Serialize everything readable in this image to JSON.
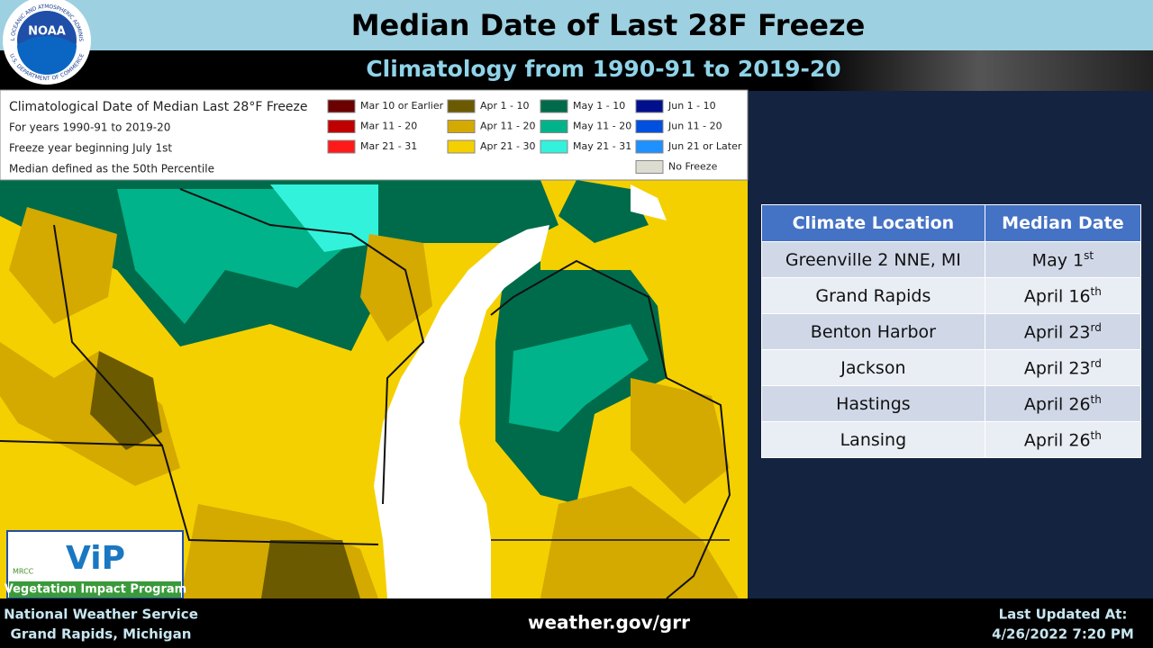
{
  "header": {
    "title": "Median Date of Last 28F Freeze",
    "subtitle": "Climatology from 1990-91 to 2019-20"
  },
  "logo": {
    "name": "NOAA",
    "ring_top": "NATIONAL OCEANIC AND ATMOSPHERIC ADMINISTRATION",
    "ring_bottom": "U.S. DEPARTMENT OF COMMERCE"
  },
  "legend": {
    "lines": [
      "Climatological Date of Median Last 28°F Freeze",
      "For years 1990-91 to 2019-20",
      "Freeze year beginning July 1st",
      "Median defined as the 50th Percentile"
    ],
    "items": [
      {
        "label": "Mar 10 or Earlier",
        "color": "#6b0000"
      },
      {
        "label": "Mar 11 - 20",
        "color": "#c00000"
      },
      {
        "label": "Mar 21 - 31",
        "color": "#ff1a1a"
      },
      {
        "label": "Apr 1 - 10",
        "color": "#6b5a00"
      },
      {
        "label": "Apr 11 - 20",
        "color": "#d4a900"
      },
      {
        "label": "Apr 21 - 30",
        "color": "#f5d000"
      },
      {
        "label": "May 1 - 10",
        "color": "#006b4a"
      },
      {
        "label": "May 11 - 20",
        "color": "#00b38a"
      },
      {
        "label": "May 21 - 31",
        "color": "#33f2dc"
      },
      {
        "label": "Jun 1 - 10",
        "color": "#000f8c"
      },
      {
        "label": "Jun 11 - 20",
        "color": "#0050e0"
      },
      {
        "label": "Jun 21 or Later",
        "color": "#1e90ff"
      },
      {
        "label": "No Freeze",
        "color": "#dcdcd0"
      }
    ]
  },
  "table": {
    "headers": [
      "Climate Location",
      "Median Date"
    ],
    "rows": [
      [
        "Greenville 2 NNE, MI",
        "May 1",
        "st"
      ],
      [
        "Grand Rapids",
        "April 16",
        "th"
      ],
      [
        "Benton Harbor",
        "April 23",
        "rd"
      ],
      [
        "Jackson",
        "April 23",
        "rd"
      ],
      [
        "Hastings",
        "April 26",
        "th"
      ],
      [
        "Lansing",
        "April 26",
        "th"
      ]
    ]
  },
  "badge": {
    "org": "MRCC",
    "name": "ViP",
    "program": "Vegetation Impact Program"
  },
  "footer": {
    "office": "National Weather Service",
    "location": "Grand Rapids, Michigan",
    "url": "weather.gov/grr",
    "updated_label": "Last Updated At:",
    "updated": "4/26/2022 7:20 PM"
  }
}
